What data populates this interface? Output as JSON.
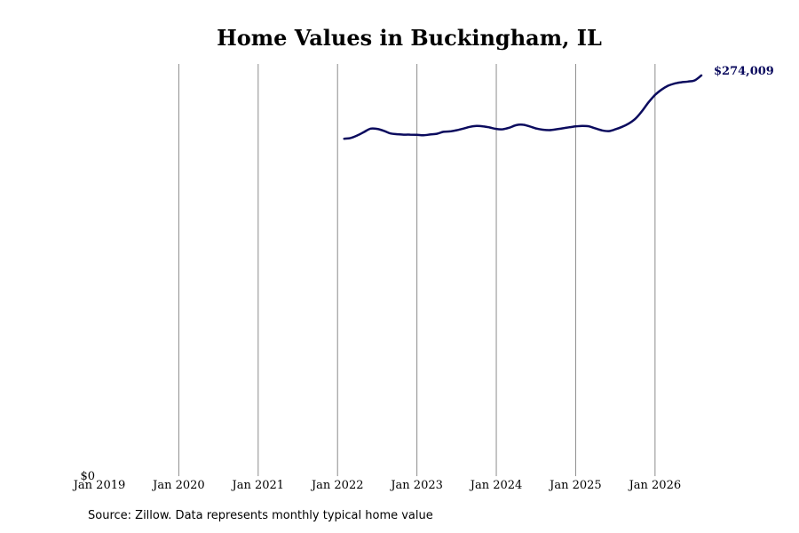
{
  "chart_data": {
    "type": "line",
    "title": "Home Values in Buckingham, IL",
    "xlabel": "",
    "ylabel": "",
    "x_range": [
      "2019-01",
      "2026-08"
    ],
    "x_ticks": [
      {
        "date": "2019-01",
        "label": "Jan 2019"
      },
      {
        "date": "2020-01",
        "label": "Jan 2020"
      },
      {
        "date": "2021-01",
        "label": "Jan 2021"
      },
      {
        "date": "2022-01",
        "label": "Jan 2022"
      },
      {
        "date": "2023-01",
        "label": "Jan 2023"
      },
      {
        "date": "2024-01",
        "label": "Jan 2024"
      },
      {
        "date": "2025-01",
        "label": "Jan 2025"
      },
      {
        "date": "2026-01",
        "label": "Jan 2026"
      }
    ],
    "y_ticks": [
      {
        "value": 0,
        "label": "$0"
      }
    ],
    "ylim": [
      0,
      280000
    ],
    "grid": {
      "vertical": true,
      "horizontal": false
    },
    "color": "#0b0b5e",
    "series": [
      {
        "name": "",
        "end_label": "$274,009",
        "points": [
          [
            "2022-02",
            230700
          ],
          [
            "2022-03",
            231200
          ],
          [
            "2022-04",
            233000
          ],
          [
            "2022-05",
            235300
          ],
          [
            "2022-06",
            237600
          ],
          [
            "2022-07",
            237400
          ],
          [
            "2022-08",
            236100
          ],
          [
            "2022-09",
            234300
          ],
          [
            "2022-10",
            233800
          ],
          [
            "2022-11",
            233500
          ],
          [
            "2022-12",
            233500
          ],
          [
            "2023-01",
            233400
          ],
          [
            "2023-02",
            233100
          ],
          [
            "2023-03",
            233600
          ],
          [
            "2023-04",
            234100
          ],
          [
            "2023-05",
            235400
          ],
          [
            "2023-06",
            235700
          ],
          [
            "2023-07",
            236500
          ],
          [
            "2023-08",
            237600
          ],
          [
            "2023-09",
            238800
          ],
          [
            "2023-10",
            239400
          ],
          [
            "2023-11",
            239200
          ],
          [
            "2023-12",
            238400
          ],
          [
            "2024-01",
            237400
          ],
          [
            "2024-02",
            237200
          ],
          [
            "2024-03",
            238300
          ],
          [
            "2024-04",
            240000
          ],
          [
            "2024-05",
            240300
          ],
          [
            "2024-06",
            239200
          ],
          [
            "2024-07",
            237700
          ],
          [
            "2024-08",
            236900
          ],
          [
            "2024-09",
            236600
          ],
          [
            "2024-10",
            237100
          ],
          [
            "2024-11",
            237800
          ],
          [
            "2024-12",
            238500
          ],
          [
            "2025-01",
            239100
          ],
          [
            "2025-02",
            239500
          ],
          [
            "2025-03",
            239200
          ],
          [
            "2025-04",
            237700
          ],
          [
            "2025-05",
            236400
          ],
          [
            "2025-06",
            235900
          ],
          [
            "2025-07",
            237100
          ],
          [
            "2025-08",
            238800
          ],
          [
            "2025-09",
            241000
          ],
          [
            "2025-10",
            244300
          ],
          [
            "2025-11",
            249400
          ],
          [
            "2025-12",
            255500
          ],
          [
            "2026-01",
            260600
          ],
          [
            "2026-02",
            264300
          ],
          [
            "2026-03",
            267000
          ],
          [
            "2026-04",
            268500
          ],
          [
            "2026-05",
            269300
          ],
          [
            "2026-06",
            269800
          ],
          [
            "2026-07",
            270600
          ],
          [
            "2026-08",
            274009
          ]
        ]
      }
    ],
    "source": "Source: Zillow. Data represents monthly typical home value"
  }
}
